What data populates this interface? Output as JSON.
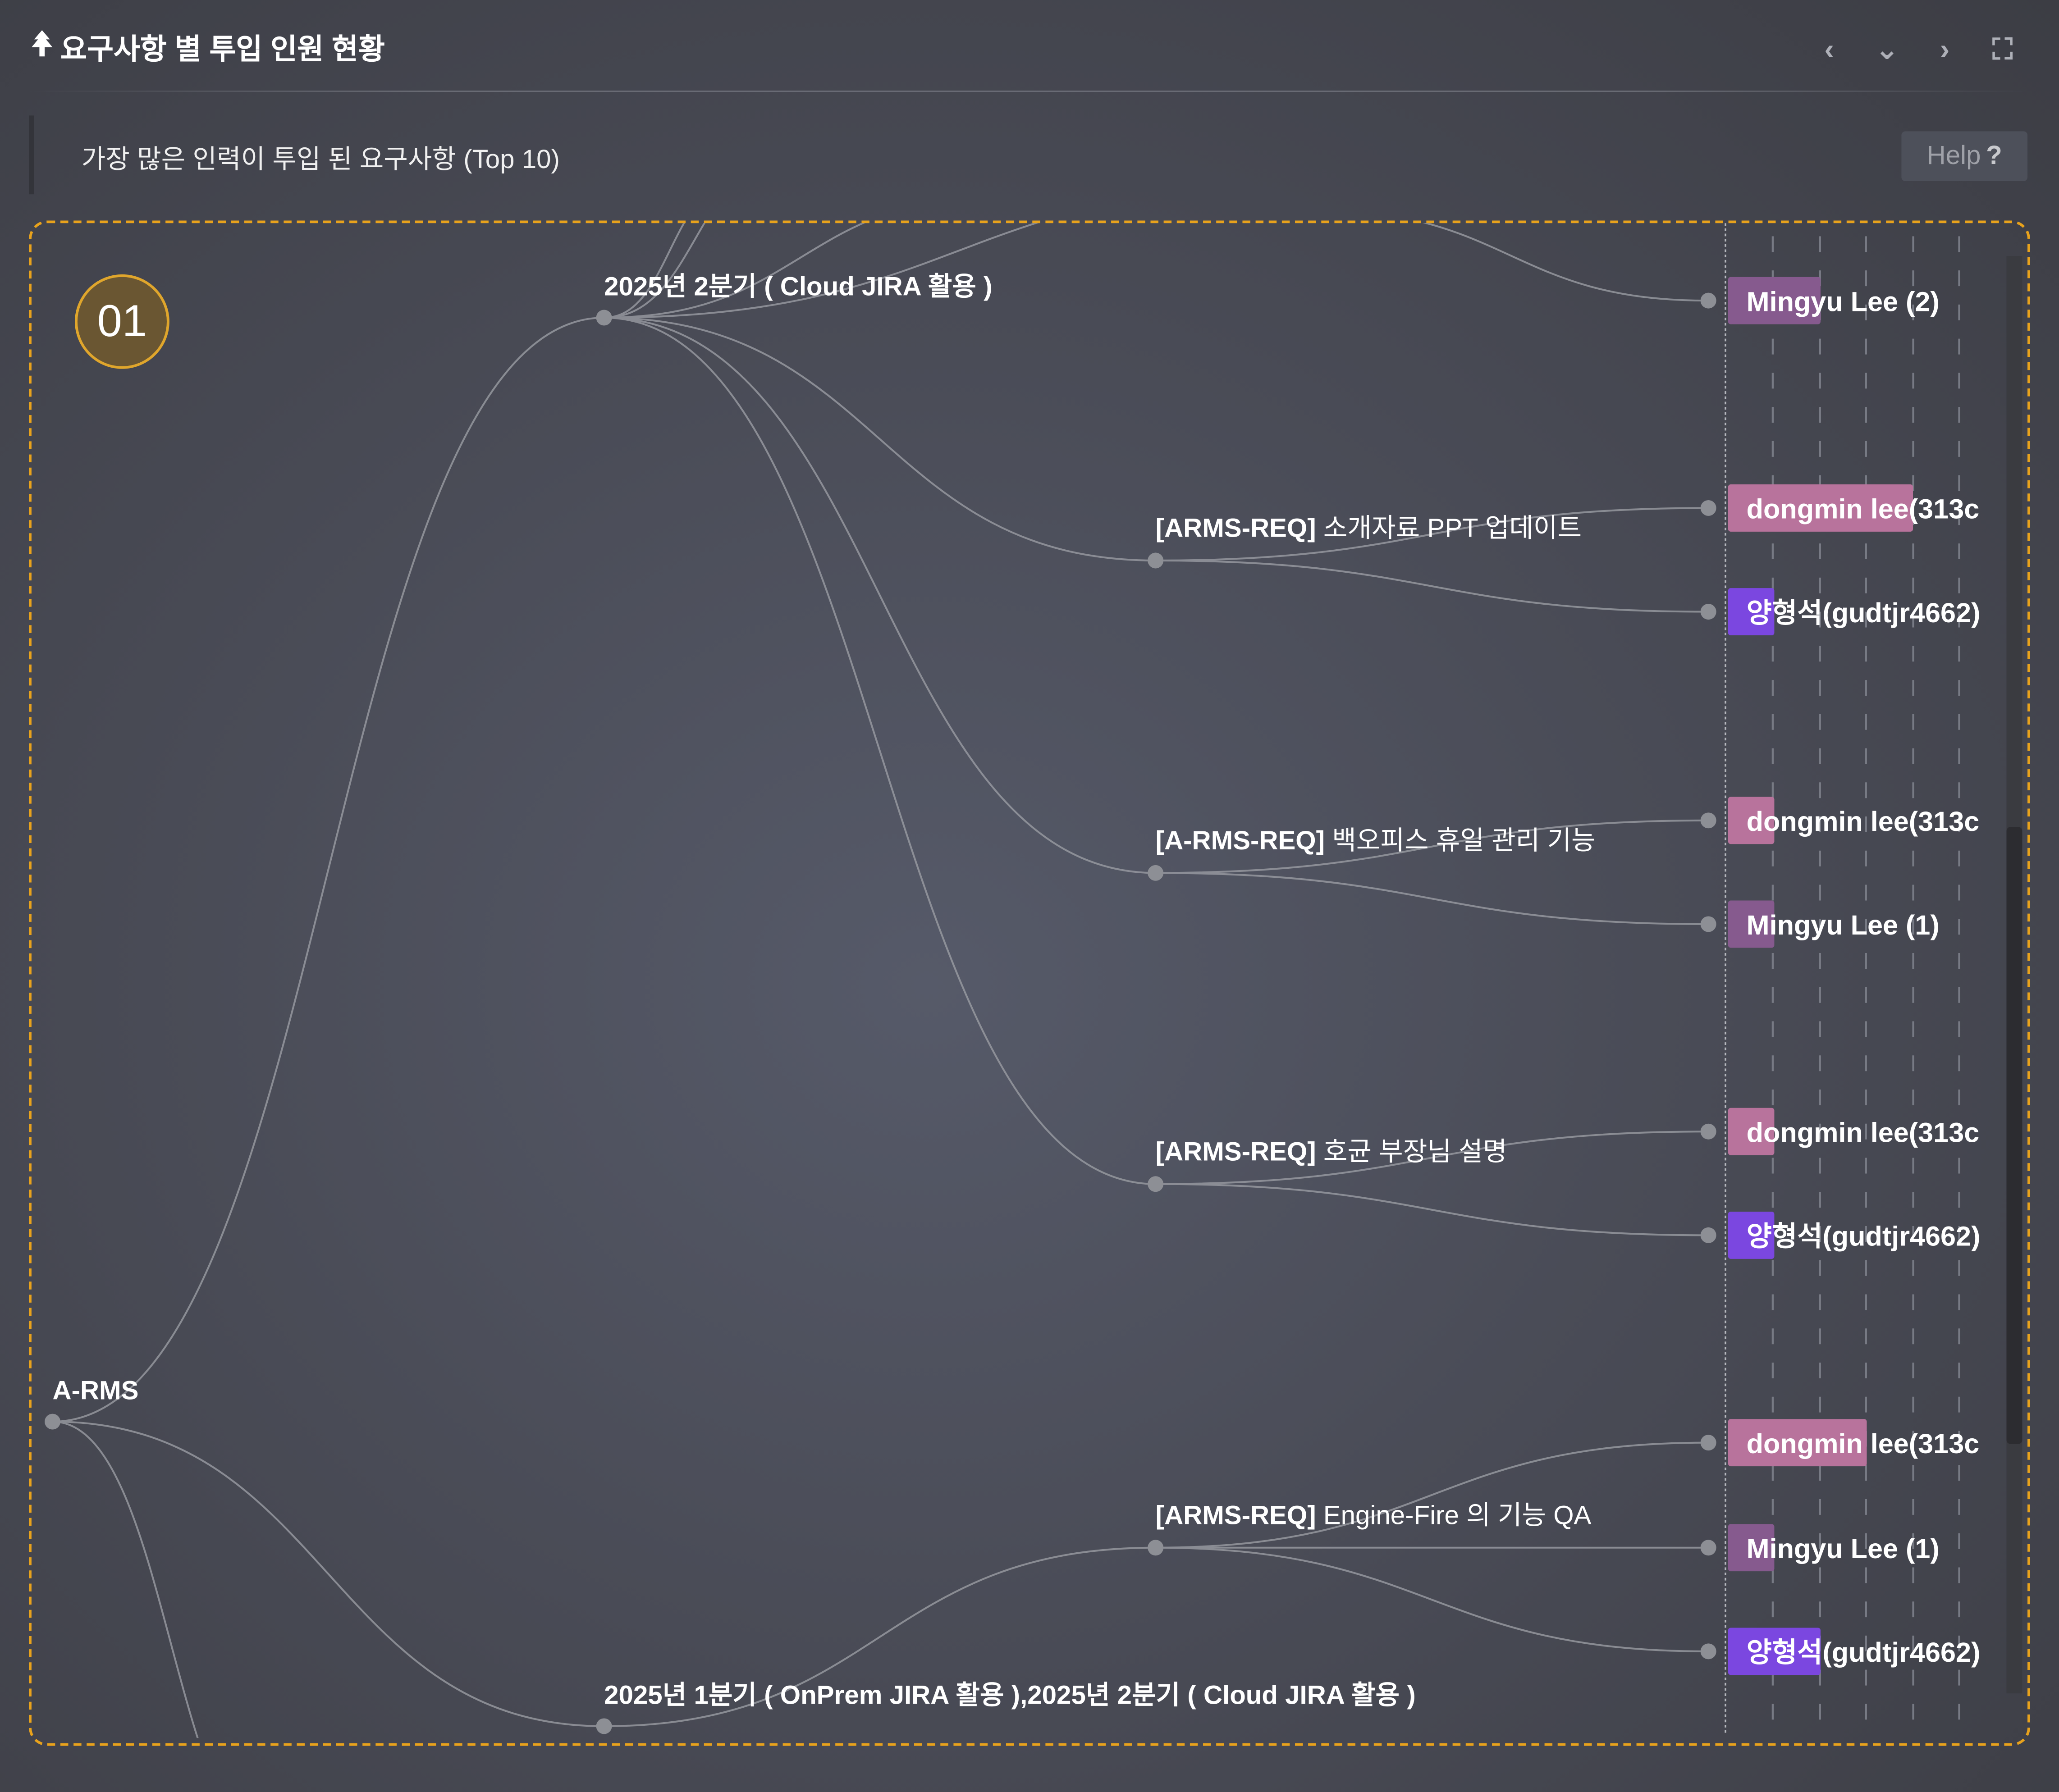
{
  "header": {
    "icon": "tree-icon",
    "title": "요구사항 별 투입 인원 현황",
    "controls": [
      {
        "name": "prev-button",
        "glyph": "‹"
      },
      {
        "name": "collapse-button",
        "glyph": "⌄"
      },
      {
        "name": "next-button",
        "glyph": "›"
      },
      {
        "name": "fullscreen-button",
        "glyph": "⛶"
      }
    ]
  },
  "subheader": {
    "text": "가장 많은 인력이 투입 된 요구사항 (Top 10)",
    "help_label": "Help",
    "help_icon": "?"
  },
  "rank_badge": "01",
  "colors": {
    "accent": "#e8a21c",
    "Mingyu Lee": "#865a8e",
    "dongmin lee": "#b8739c",
    "양형석": "#7b47e0",
    "link": "#9a9ca3",
    "node": "#8d8f95"
  },
  "tree": {
    "root": "A-RMS",
    "groups": [
      {
        "label": "2025년 2분기 ( Cloud JIRA 활용 )",
        "top_leaf": {
          "person": "Mingyu Lee",
          "text": "Mingyu Lee (2)",
          "value": 2
        },
        "requirements": [
          {
            "prefix": "[ARMS-REQ]",
            "title": "소개자료 PPT 업데이트",
            "leaves": [
              {
                "person": "dongmin lee",
                "text": "dongmin lee(313c",
                "value": 4
              },
              {
                "person": "양형석",
                "text": "양형석(gudtjr4662)",
                "value": 1
              }
            ]
          },
          {
            "prefix": "[A-RMS-REQ]",
            "title": "백오피스 휴일 관리 기능",
            "leaves": [
              {
                "person": "dongmin lee",
                "text": "dongmin lee(313c",
                "value": 1
              },
              {
                "person": "Mingyu Lee",
                "text": "Mingyu Lee (1)",
                "value": 1
              }
            ]
          },
          {
            "prefix": "[ARMS-REQ]",
            "title": "호균 부장님 설명",
            "leaves": [
              {
                "person": "dongmin lee",
                "text": "dongmin lee(313c",
                "value": 1
              },
              {
                "person": "양형석",
                "text": "양형석(gudtjr4662)",
                "value": 1
              }
            ]
          }
        ]
      },
      {
        "label": "2025년 1분기 ( OnPrem JIRA 활용 ),2025년 2분기 ( Cloud JIRA 활용 )",
        "requirements": [
          {
            "prefix": "[ARMS-REQ]",
            "title": "Engine-Fire 의 기능 QA",
            "leaves": [
              {
                "person": "dongmin lee",
                "text": "dongmin lee(313c",
                "value": 3
              },
              {
                "person": "Mingyu Lee",
                "text": "Mingyu Lee (1)",
                "value": 1
              },
              {
                "person": "양형석",
                "text": "양형석(gudtjr4662)",
                "value": 2
              }
            ]
          }
        ]
      }
    ]
  }
}
